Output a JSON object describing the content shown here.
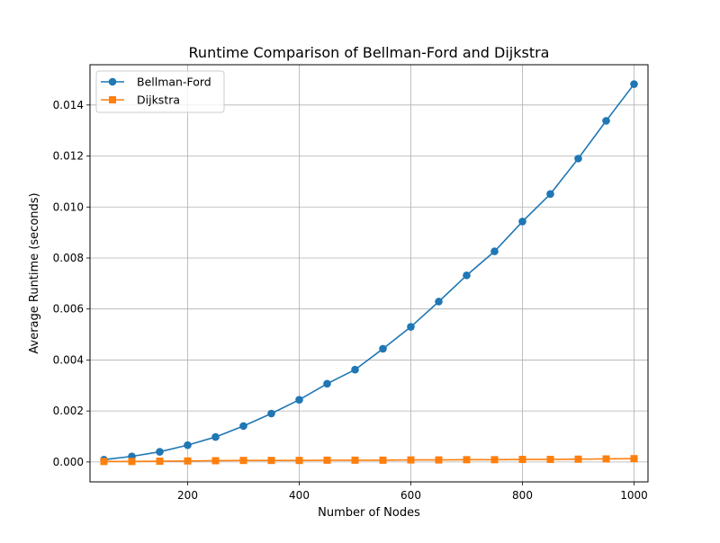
{
  "colors": {
    "bellman_ford": "#1f77b4",
    "dijkstra": "#ff7f0e",
    "grid": "#b0b0b0",
    "axes": "#000000",
    "legend_border": "#cccccc"
  },
  "chart_data": {
    "type": "line",
    "title": "Runtime Comparison of Bellman-Ford and Dijkstra",
    "xlabel": "Number of Nodes",
    "ylabel": "Average Runtime (seconds)",
    "xlim": [
      25,
      1025
    ],
    "ylim": [
      -0.00078,
      0.01558
    ],
    "xticks": [
      {
        "value": 200,
        "label": "200"
      },
      {
        "value": 400,
        "label": "400"
      },
      {
        "value": 600,
        "label": "600"
      },
      {
        "value": 800,
        "label": "800"
      },
      {
        "value": 1000,
        "label": "1000"
      }
    ],
    "yticks": [
      {
        "value": 0.0,
        "label": "0.000"
      },
      {
        "value": 0.002,
        "label": "0.002"
      },
      {
        "value": 0.004,
        "label": "0.004"
      },
      {
        "value": 0.006,
        "label": "0.006"
      },
      {
        "value": 0.008,
        "label": "0.008"
      },
      {
        "value": 0.01,
        "label": "0.010"
      },
      {
        "value": 0.012,
        "label": "0.012"
      },
      {
        "value": 0.014,
        "label": "0.014"
      }
    ],
    "grid": true,
    "legend_position": "top-left",
    "x": [
      50,
      100,
      150,
      200,
      250,
      300,
      350,
      400,
      450,
      500,
      550,
      600,
      650,
      700,
      750,
      800,
      850,
      900,
      950,
      1000
    ],
    "series": [
      {
        "name": "Bellman-Ford",
        "marker": "circle",
        "color_key": "bellman_ford",
        "values": [
          9e-05,
          0.00022,
          0.0004,
          0.00066,
          0.00098,
          0.00141,
          0.0019,
          0.00244,
          0.00307,
          0.00362,
          0.00444,
          0.0053,
          0.00629,
          0.00732,
          0.00826,
          0.00943,
          0.01051,
          0.0119,
          0.01338,
          0.01482
        ]
      },
      {
        "name": "Dijkstra",
        "marker": "square",
        "color_key": "dijkstra",
        "values": [
          2e-05,
          2e-05,
          3e-05,
          4e-05,
          5e-05,
          6e-05,
          6e-05,
          6e-05,
          7e-05,
          7e-05,
          7e-05,
          8e-05,
          8e-05,
          9e-05,
          9e-05,
          0.0001,
          0.0001,
          0.00011,
          0.00012,
          0.00013
        ]
      }
    ]
  }
}
